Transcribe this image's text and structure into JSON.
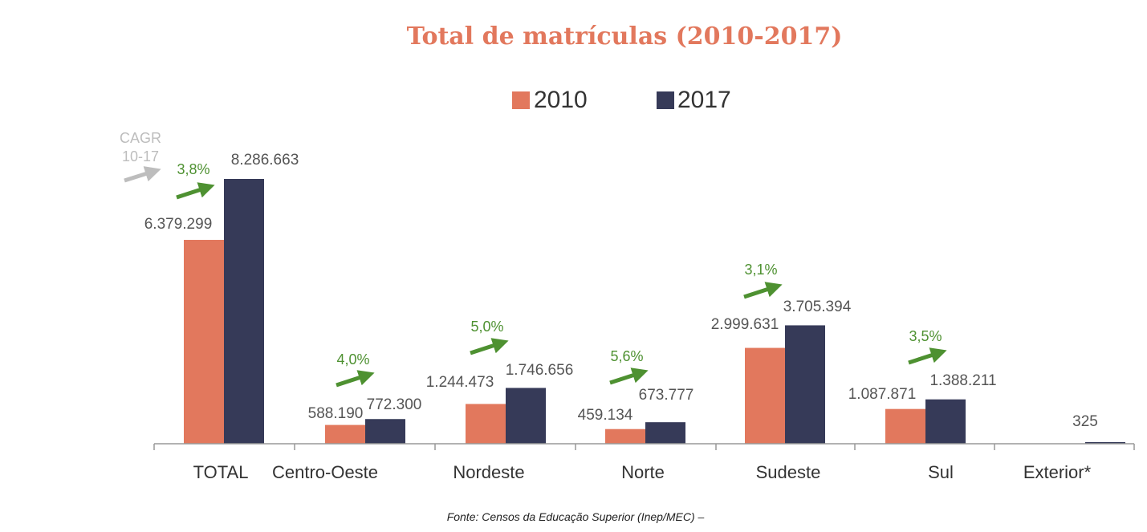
{
  "chart_data": {
    "type": "bar",
    "title": "Total de matrículas (2010-2017)",
    "categories": [
      "TOTAL",
      "Centro-Oeste",
      "Nordeste",
      "Norte",
      "Sudeste",
      "Sul",
      "Exterior*"
    ],
    "series": [
      {
        "name": "2010",
        "values": [
          6379299,
          588190,
          1244473,
          459134,
          2999631,
          1087871,
          null
        ],
        "labels": [
          "6.379.299",
          "588.190",
          "1.244.473",
          "459.134",
          "2.999.631",
          "1.087.871",
          ""
        ]
      },
      {
        "name": "2017",
        "values": [
          8286663,
          772300,
          1746656,
          673777,
          3705394,
          1388211,
          325
        ],
        "labels": [
          "8.286.663",
          "772.300",
          "1.746.656",
          "673.777",
          "3.705.394",
          "1.388.211",
          "325"
        ]
      }
    ],
    "cagr_label": [
      "CAGR",
      "10-17"
    ],
    "cagr": [
      "3,8%",
      "4,0%",
      "5,0%",
      "5,6%",
      "3,1%",
      "3,5%",
      ""
    ],
    "ylim": [
      0,
      8500000
    ],
    "legend_position": "top",
    "grid": false,
    "xlabel": "",
    "ylabel": ""
  },
  "colors": {
    "title": "#e2785d",
    "series_2010": "#e2785d",
    "series_2017": "#363a58",
    "cagr": "#4e9131",
    "cagr_label": "#bdbdbd",
    "axis": "#999999"
  },
  "source": "Fonte: Censos da Educação Superior (Inep/MEC) –"
}
